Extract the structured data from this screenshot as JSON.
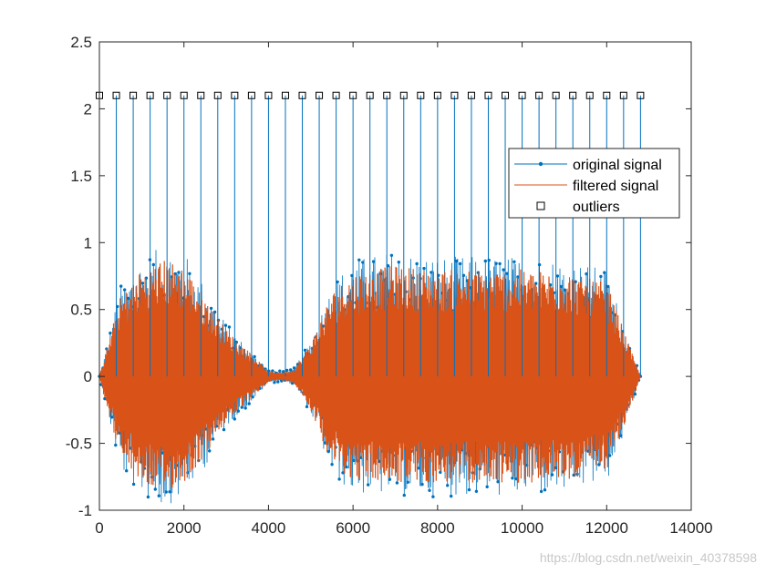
{
  "chart_data": {
    "type": "line",
    "title": "",
    "xlabel": "",
    "ylabel": "",
    "xlim": [
      0,
      14000
    ],
    "ylim": [
      -1,
      2.5
    ],
    "x_ticks": [
      0,
      2000,
      4000,
      6000,
      8000,
      10000,
      12000,
      14000
    ],
    "x_tick_labels": [
      "0",
      "2000",
      "4000",
      "6000",
      "8000",
      "10000",
      "12000",
      "14000"
    ],
    "y_ticks": [
      -1,
      -0.5,
      0,
      0.5,
      1,
      1.5,
      2,
      2.5
    ],
    "y_tick_labels": [
      "-1",
      "-0.5",
      "0",
      "0.5",
      "1",
      "1.5",
      "2",
      "2.5"
    ],
    "grid": false,
    "legend_position": "upper-right",
    "signal_extent": [
      0,
      12800
    ],
    "series": [
      {
        "name": "original signal",
        "color": "#0072BD",
        "marker": "dot",
        "envelope": {
          "x": [
            0,
            500,
            1000,
            1500,
            2000,
            2500,
            3000,
            3500,
            4000,
            4300,
            4600,
            5000,
            5500,
            6000,
            7000,
            8000,
            9000,
            10000,
            11000,
            12000,
            12400,
            12800
          ],
          "upper": [
            0,
            0.68,
            0.88,
            0.98,
            0.93,
            0.68,
            0.4,
            0.22,
            0.05,
            0.04,
            0.06,
            0.28,
            0.7,
            0.88,
            0.94,
            0.9,
            0.9,
            0.9,
            0.88,
            0.8,
            0.4,
            0
          ],
          "lower": [
            0,
            -0.72,
            -0.9,
            -0.98,
            -0.9,
            -0.68,
            -0.38,
            -0.23,
            -0.05,
            -0.04,
            -0.06,
            -0.28,
            -0.75,
            -0.88,
            -0.9,
            -0.9,
            -0.9,
            -0.9,
            -0.88,
            -0.8,
            -0.45,
            0
          ]
        }
      },
      {
        "name": "filtered signal",
        "color": "#D95319",
        "marker": "none",
        "envelope": {
          "x": [
            0,
            500,
            1000,
            1500,
            2000,
            2500,
            3000,
            3500,
            4000,
            4300,
            4600,
            5000,
            5500,
            6000,
            7000,
            8000,
            9000,
            10000,
            11000,
            12000,
            12400,
            12800
          ],
          "upper": [
            0,
            0.6,
            0.8,
            0.88,
            0.83,
            0.6,
            0.35,
            0.2,
            0.04,
            0.03,
            0.05,
            0.25,
            0.63,
            0.78,
            0.83,
            0.8,
            0.8,
            0.8,
            0.78,
            0.7,
            0.35,
            0
          ],
          "lower": [
            0,
            -0.62,
            -0.8,
            -0.88,
            -0.8,
            -0.6,
            -0.34,
            -0.2,
            -0.04,
            -0.03,
            -0.05,
            -0.25,
            -0.66,
            -0.78,
            -0.8,
            -0.8,
            -0.8,
            -0.8,
            -0.78,
            -0.7,
            -0.4,
            0
          ]
        }
      },
      {
        "name": "outliers",
        "color": "#000000",
        "marker": "square",
        "x": [
          0,
          400,
          800,
          1200,
          1600,
          2000,
          2400,
          2800,
          3200,
          3600,
          4000,
          4400,
          4800,
          5200,
          5600,
          6000,
          6400,
          6800,
          7200,
          7600,
          8000,
          8400,
          8800,
          9200,
          9600,
          10000,
          10400,
          10800,
          11200,
          11600,
          12000,
          12400,
          12800
        ],
        "y": [
          2.1,
          2.1,
          2.1,
          2.1,
          2.1,
          2.1,
          2.1,
          2.1,
          2.1,
          2.1,
          2.1,
          2.1,
          2.1,
          2.1,
          2.1,
          2.1,
          2.1,
          2.1,
          2.1,
          2.1,
          2.1,
          2.1,
          2.1,
          2.1,
          2.1,
          2.1,
          2.1,
          2.1,
          2.1,
          2.1,
          2.1,
          2.1,
          2.1
        ]
      }
    ]
  },
  "watermark": "https://blog.csdn.net/weixin_40378598"
}
